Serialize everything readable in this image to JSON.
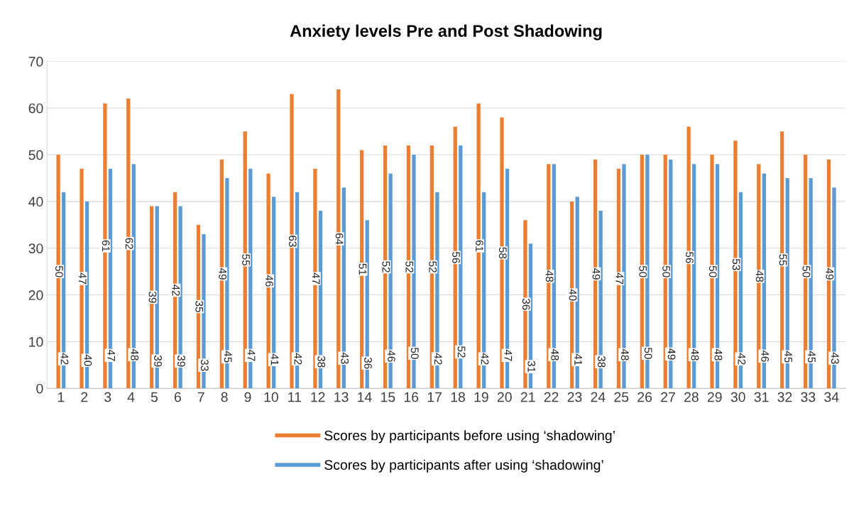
{
  "chart_data": {
    "type": "bar",
    "title": "Anxiety levels Pre and Post Shadowing",
    "categories": [
      "1",
      "2",
      "3",
      "4",
      "5",
      "6",
      "7",
      "8",
      "9",
      "10",
      "11",
      "12",
      "13",
      "14",
      "15",
      "16",
      "17",
      "18",
      "19",
      "20",
      "21",
      "22",
      "23",
      "24",
      "25",
      "26",
      "27",
      "28",
      "29",
      "30",
      "31",
      "32",
      "33",
      "34"
    ],
    "series": [
      {
        "name": "Scores by participants before using ‘shadowing’",
        "color": "#ed7d31",
        "values": [
          50,
          47,
          61,
          62,
          39,
          42,
          35,
          49,
          55,
          46,
          63,
          47,
          64,
          51,
          52,
          52,
          52,
          56,
          61,
          58,
          36,
          48,
          40,
          49,
          47,
          50,
          50,
          56,
          50,
          53,
          48,
          55,
          50,
          49
        ]
      },
      {
        "name": "Scores by participants after using ‘shadowing’",
        "color": "#5b9bd5",
        "values": [
          42,
          40,
          47,
          48,
          39,
          39,
          33,
          45,
          47,
          41,
          42,
          38,
          43,
          36,
          46,
          50,
          42,
          52,
          42,
          47,
          31,
          48,
          41,
          38,
          48,
          50,
          49,
          48,
          48,
          42,
          46,
          45,
          45,
          43
        ]
      }
    ],
    "ylim": [
      0,
      70
    ],
    "yticks": [
      0,
      10,
      20,
      30,
      40,
      50,
      60,
      70
    ],
    "grid": "y",
    "legend": "bottom",
    "data_labels": true
  }
}
